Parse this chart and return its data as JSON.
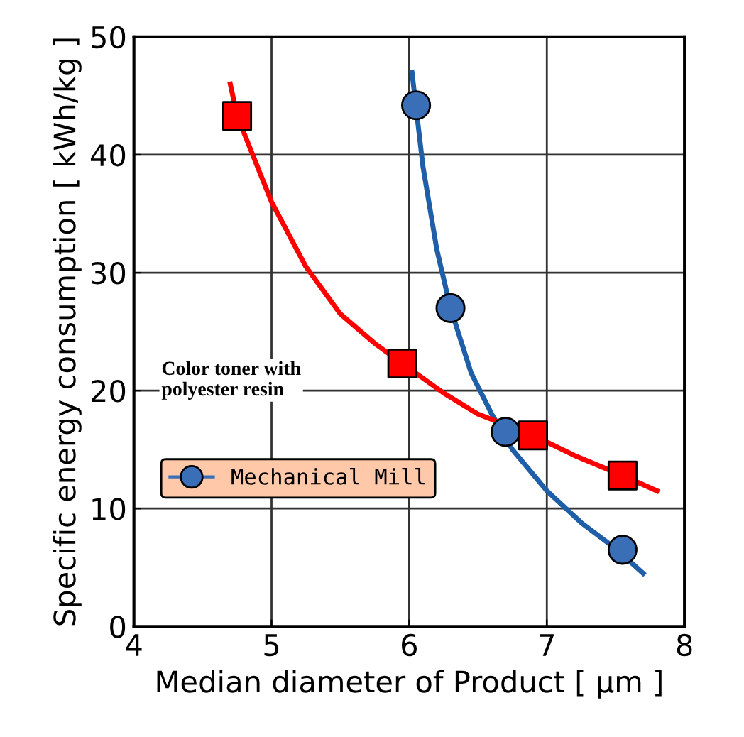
{
  "chart_data": {
    "type": "scatter",
    "xlabel": "Median diameter of Product [ μm ]",
    "ylabel": "Specific energy consumption [ kWh/kg ]",
    "xlim": [
      4,
      8
    ],
    "ylim": [
      0,
      50
    ],
    "xticks": [
      4,
      5,
      6,
      7,
      8
    ],
    "yticks": [
      0,
      10,
      20,
      30,
      40,
      50
    ],
    "grid": true,
    "legend": "bottom left",
    "annotations": [
      "Color toner with\npolyester resin"
    ],
    "series": [
      {
        "type": "line",
        "color": "#1f5fa8",
        "x": [
          6.02,
          6.05,
          6.1,
          6.2,
          6.3,
          6.45,
          6.6,
          6.75,
          7.0,
          7.25,
          7.5,
          7.7
        ],
        "values": [
          47,
          44,
          39,
          32,
          27,
          21.5,
          18,
          15,
          11.5,
          8.8,
          6.6,
          4.5
        ]
      },
      {
        "type": "line",
        "color": "#ff0000",
        "x": [
          4.7,
          4.75,
          5.0,
          5.25,
          5.5,
          5.75,
          5.95,
          6.25,
          6.5,
          6.9,
          7.2,
          7.55,
          7.8
        ],
        "values": [
          46,
          43.3,
          36,
          30.5,
          26.5,
          24,
          22.3,
          19.8,
          18,
          16.2,
          14.5,
          12.8,
          11.5
        ]
      },
      {
        "name": "Mechanical Mill",
        "color": "#3a6fb8",
        "marker": "circle",
        "x": [
          6.05,
          6.3,
          6.7,
          7.55
        ],
        "values": [
          44.2,
          27,
          16.5,
          6.5
        ]
      },
      {
        "color": "#ff0000",
        "marker": "square",
        "x": [
          4.75,
          5.95,
          6.9,
          7.55
        ],
        "values": [
          43.3,
          22.3,
          16.2,
          12.8
        ]
      }
    ]
  }
}
